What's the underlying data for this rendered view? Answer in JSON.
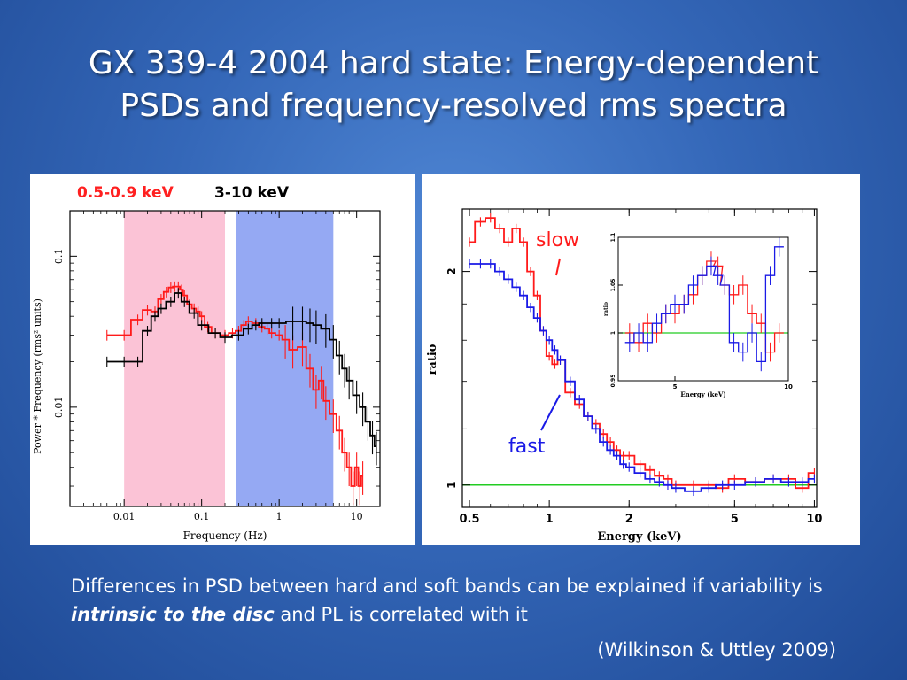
{
  "slide": {
    "title_line1": "GX 339-4 2004 hard state: Energy-dependent",
    "title_line2": "PSDs and frequency-resolved rms spectra",
    "caption_pre": "Differences in PSD between hard and soft bands can be explained if variability is ",
    "caption_em": "intrinsic to the disc",
    "caption_post": " and PL is correlated with it",
    "citation": "(Wilkinson & Uttley 2009)"
  },
  "colors": {
    "soft_band": "#ff2020",
    "hard_band": "#000000",
    "slow": "#ff1a1a",
    "fast": "#1a1ae6",
    "unity": "#22cc22",
    "pink_region": "#fbbcd2",
    "blue_region": "#8aa0f2"
  },
  "chart_data": [
    {
      "type": "line",
      "title": "",
      "xlabel": "Frequency (Hz)",
      "ylabel": "Power * Frequency (rms² units)",
      "xscale": "log",
      "yscale": "log",
      "xlim": [
        0.002,
        20
      ],
      "ylim": [
        0.0022,
        0.2
      ],
      "xticks": [
        0.01,
        0.1,
        1,
        10
      ],
      "xtick_labels": [
        "0.01",
        "0.1",
        "1",
        "10"
      ],
      "yticks": [
        0.01,
        0.1
      ],
      "ytick_labels": [
        "0.01",
        "0.1"
      ],
      "band_labels": [
        "0.5-0.9 keV",
        "3-10 keV"
      ],
      "shaded_regions": [
        {
          "from": 0.01,
          "to": 0.2,
          "color": "pink"
        },
        {
          "from": 0.28,
          "to": 5.0,
          "color": "blue"
        }
      ],
      "series": [
        {
          "name": "0.5-0.9 keV",
          "color": "red",
          "x": [
            0.006,
            0.01,
            0.015,
            0.02,
            0.025,
            0.03,
            0.035,
            0.04,
            0.045,
            0.05,
            0.055,
            0.06,
            0.07,
            0.08,
            0.09,
            0.1,
            0.12,
            0.15,
            0.2,
            0.25,
            0.3,
            0.35,
            0.4,
            0.5,
            0.6,
            0.7,
            0.8,
            1.0,
            1.2,
            1.5,
            2.0,
            2.5,
            3.0,
            3.5,
            4.0,
            5.0,
            6.0,
            7.0,
            8.0,
            9.0,
            10.0,
            11.0,
            12.0
          ],
          "y": [
            0.03,
            0.03,
            0.038,
            0.044,
            0.043,
            0.052,
            0.058,
            0.062,
            0.063,
            0.063,
            0.06,
            0.055,
            0.048,
            0.045,
            0.043,
            0.04,
            0.034,
            0.031,
            0.03,
            0.031,
            0.032,
            0.035,
            0.037,
            0.036,
            0.034,
            0.033,
            0.031,
            0.03,
            0.028,
            0.024,
            0.025,
            0.018,
            0.013,
            0.015,
            0.011,
            0.009,
            0.007,
            0.005,
            0.004,
            0.003,
            0.004,
            0.003,
            0.0035
          ]
        },
        {
          "name": "3-10 keV",
          "color": "black",
          "x": [
            0.006,
            0.01,
            0.015,
            0.02,
            0.025,
            0.03,
            0.04,
            0.05,
            0.06,
            0.08,
            0.1,
            0.15,
            0.2,
            0.3,
            0.4,
            0.5,
            0.6,
            0.8,
            1.0,
            1.5,
            2.0,
            2.5,
            3.0,
            4.0,
            5.0,
            6.0,
            7.0,
            8.0,
            10.0,
            12.0,
            14.0,
            16.0,
            18.0
          ],
          "y": [
            0.02,
            0.02,
            0.02,
            0.032,
            0.04,
            0.045,
            0.05,
            0.057,
            0.05,
            0.042,
            0.035,
            0.031,
            0.029,
            0.03,
            0.033,
            0.035,
            0.036,
            0.036,
            0.036,
            0.037,
            0.037,
            0.036,
            0.035,
            0.033,
            0.028,
            0.022,
            0.018,
            0.015,
            0.012,
            0.01,
            0.008,
            0.0065,
            0.0055
          ]
        }
      ]
    },
    {
      "type": "line",
      "title": "",
      "xlabel": "Energy (keV)",
      "ylabel": "ratio",
      "xscale": "log",
      "yscale": "log",
      "xlim": [
        0.47,
        10.2
      ],
      "ylim": [
        0.93,
        2.45
      ],
      "xticks": [
        0.5,
        1,
        2,
        5,
        10
      ],
      "xtick_labels": [
        "0.5",
        "1",
        "2",
        "5",
        "10"
      ],
      "yticks": [
        1,
        2
      ],
      "ytick_labels": [
        "1",
        "2"
      ],
      "reference_line": 1.0,
      "annotations": [
        "slow",
        "fast"
      ],
      "series": [
        {
          "name": "slow",
          "color": "red",
          "x": [
            0.5,
            0.55,
            0.6,
            0.65,
            0.7,
            0.75,
            0.8,
            0.85,
            0.9,
            0.95,
            1.0,
            1.05,
            1.1,
            1.2,
            1.3,
            1.4,
            1.5,
            1.6,
            1.7,
            1.8,
            1.9,
            2.0,
            2.2,
            2.4,
            2.6,
            2.8,
            3.0,
            3.5,
            4.0,
            4.5,
            5.0,
            6.0,
            7.0,
            8.0,
            9.0,
            10.0
          ],
          "y": [
            2.2,
            2.35,
            2.38,
            2.3,
            2.2,
            2.3,
            2.2,
            2.0,
            1.85,
            1.65,
            1.52,
            1.48,
            1.5,
            1.35,
            1.3,
            1.25,
            1.22,
            1.18,
            1.15,
            1.12,
            1.1,
            1.1,
            1.07,
            1.05,
            1.03,
            1.02,
            1.0,
            1.0,
            1.0,
            0.99,
            1.02,
            1.01,
            1.02,
            1.02,
            0.99,
            1.04
          ]
        },
        {
          "name": "fast",
          "color": "blue",
          "x": [
            0.5,
            0.55,
            0.6,
            0.65,
            0.7,
            0.75,
            0.8,
            0.85,
            0.9,
            0.95,
            1.0,
            1.05,
            1.1,
            1.2,
            1.3,
            1.4,
            1.5,
            1.6,
            1.7,
            1.8,
            1.9,
            2.0,
            2.2,
            2.4,
            2.6,
            2.8,
            3.0,
            3.5,
            4.0,
            4.5,
            5.0,
            6.0,
            7.0,
            8.0,
            9.0,
            10.0
          ],
          "y": [
            2.05,
            2.05,
            2.05,
            2.0,
            1.95,
            1.9,
            1.85,
            1.78,
            1.72,
            1.65,
            1.6,
            1.55,
            1.5,
            1.4,
            1.32,
            1.25,
            1.2,
            1.15,
            1.12,
            1.1,
            1.07,
            1.06,
            1.04,
            1.02,
            1.01,
            1.0,
            0.99,
            0.98,
            0.99,
            1.0,
            1.0,
            1.01,
            1.02,
            1.01,
            1.01,
            1.02
          ]
        }
      ]
    },
    {
      "type": "line",
      "title": "",
      "xlabel": "Energy (keV)",
      "ylabel": "ratio",
      "xscale": "linear",
      "yscale": "linear",
      "xlim": [
        2.5,
        10
      ],
      "ylim": [
        0.95,
        1.1
      ],
      "xticks": [
        5,
        10
      ],
      "xtick_labels": [
        "5",
        "10"
      ],
      "yticks": [
        0.95,
        1,
        1.05,
        1.1
      ],
      "ytick_labels": [
        "0.95",
        "1",
        "1.05",
        "1.1"
      ],
      "reference_line": 1.0,
      "series": [
        {
          "name": "slow",
          "color": "red",
          "x": [
            3.0,
            3.4,
            3.8,
            4.2,
            4.6,
            5.0,
            5.4,
            5.8,
            6.2,
            6.6,
            6.9,
            7.2,
            7.6,
            8.0,
            8.4,
            8.8,
            9.2,
            9.6
          ],
          "y": [
            1.0,
            0.99,
            1.01,
            1.0,
            1.02,
            1.02,
            1.03,
            1.04,
            1.06,
            1.075,
            1.07,
            1.05,
            1.04,
            1.05,
            1.02,
            1.01,
            0.98,
            1.0
          ]
        },
        {
          "name": "fast",
          "color": "blue",
          "x": [
            3.0,
            3.4,
            3.8,
            4.2,
            4.6,
            5.0,
            5.4,
            5.8,
            6.2,
            6.6,
            6.9,
            7.2,
            7.6,
            8.0,
            8.4,
            8.8,
            9.2,
            9.6
          ],
          "y": [
            0.99,
            1.0,
            0.99,
            1.01,
            1.02,
            1.03,
            1.03,
            1.05,
            1.06,
            1.07,
            1.06,
            1.05,
            0.99,
            0.98,
            1.0,
            0.97,
            1.06,
            1.09
          ]
        }
      ]
    }
  ]
}
